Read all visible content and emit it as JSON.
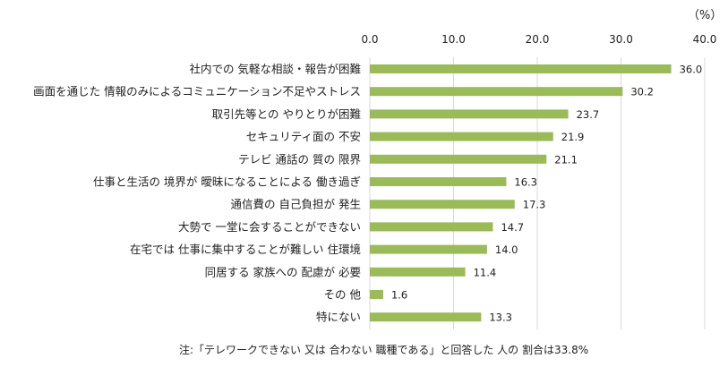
{
  "unit_label": "（%）",
  "footnote": "注:「テレワークできない 又は 合わない 職種である」と回答した 人の 割合は33.8%",
  "colors": {
    "bar": "#9bbb59",
    "gridline": "#d9d9d9",
    "text": "#222222"
  },
  "chart_data": {
    "type": "bar",
    "orientation": "horizontal",
    "title": "",
    "xlabel": "",
    "ylabel": "",
    "xlim": [
      0,
      40
    ],
    "xticks": [
      0,
      10,
      20,
      30,
      40
    ],
    "xtick_labels": [
      "0.0",
      "10.0",
      "20.0",
      "30.0",
      "40.0"
    ],
    "grid": true,
    "categories": [
      "社内での 気軽な相談・報告が困難",
      "画面を通じた 情報のみによるコミュニケーション不足やストレス",
      "取引先等との やりとりが困難",
      "セキュリティ面の 不安",
      "テレビ 通話の 質の 限界",
      "仕事と生活の 境界が 曖昧になることによる 働き過ぎ",
      "通信費の 自己負担が 発生",
      "大勢で 一堂に会することができない",
      "在宅では 仕事に集中することが難しい 住環境",
      "同居する 家族への 配慮が 必要",
      "その 他",
      "特にない"
    ],
    "values": [
      36.0,
      30.2,
      23.7,
      21.9,
      21.1,
      16.3,
      17.3,
      14.7,
      14.0,
      11.4,
      1.6,
      13.3
    ],
    "value_labels": [
      "36.0",
      "30.2",
      "23.7",
      "21.9",
      "21.1",
      "16.3",
      "17.3",
      "14.7",
      "14.0",
      "11.4",
      "1.6",
      "13.3"
    ]
  }
}
